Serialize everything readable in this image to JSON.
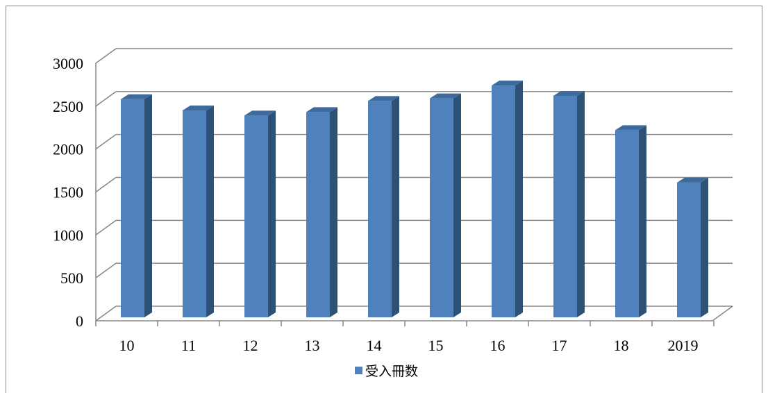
{
  "chart_data": {
    "type": "bar",
    "categories": [
      "10",
      "11",
      "12",
      "13",
      "14",
      "15",
      "16",
      "17",
      "18",
      "2019"
    ],
    "series": [
      {
        "name": "受入冊数",
        "values": [
          2540,
          2410,
          2350,
          2390,
          2520,
          2550,
          2700,
          2580,
          2180,
          1570
        ]
      }
    ],
    "ylim": [
      0,
      3000
    ],
    "yticks": [
      0,
      500,
      1000,
      1500,
      2000,
      2500,
      3000
    ],
    "grid": true,
    "legend_position": "bottom",
    "style": "3d-column",
    "colors": {
      "bar_front": "#4F81BD",
      "bar_side": "#2E5176",
      "bar_top": "#3F6A9C",
      "gridline": "#868686"
    }
  }
}
